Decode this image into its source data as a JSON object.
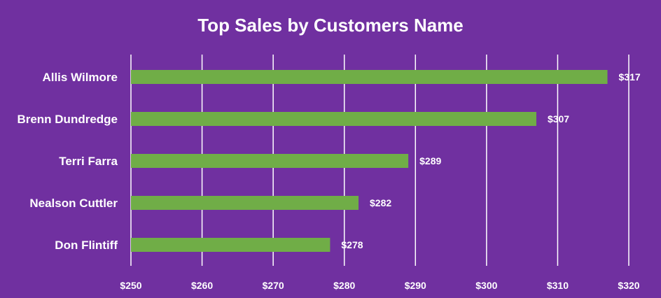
{
  "chart_data": {
    "type": "bar",
    "orientation": "horizontal",
    "title": "Top Sales by Customers Name",
    "categories": [
      "Allis Wilmore",
      "Brenn Dundredge",
      "Terri Farra",
      "Nealson Cuttler",
      "Don Flintiff"
    ],
    "values": [
      317,
      307,
      289,
      282,
      278
    ],
    "data_labels": [
      "$317",
      "$307",
      "$289",
      "$282",
      "$278"
    ],
    "xlim": [
      250,
      320
    ],
    "x_ticks": [
      250,
      260,
      270,
      280,
      290,
      300,
      310,
      320
    ],
    "x_tick_labels": [
      "$250",
      "$260",
      "$270",
      "$280",
      "$290",
      "$300",
      "$310",
      "$320"
    ],
    "grid": "vertical",
    "legend": "none"
  },
  "colors": {
    "background": "#7030a0",
    "bar": "#70ad47",
    "text": "#ffffff",
    "gridline": "#ffffff"
  }
}
